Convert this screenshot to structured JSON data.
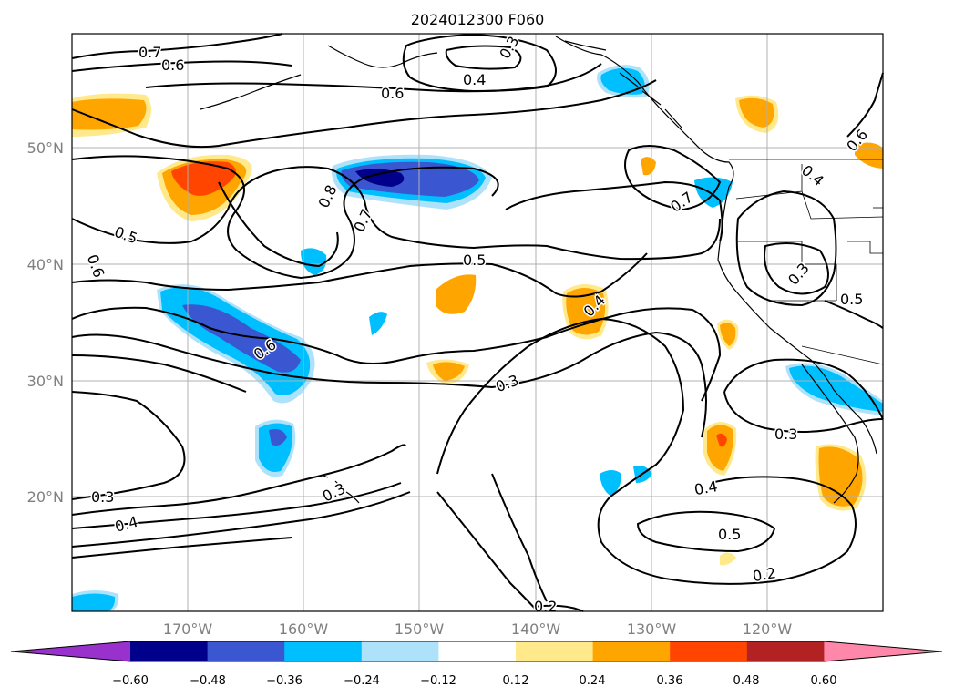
{
  "title": "2024012300 F060",
  "lat_labels": [
    "50°N",
    "40°N",
    "30°N",
    "20°N"
  ],
  "lon_labels": [
    "170°W",
    "160°W",
    "150°W",
    "140°W",
    "130°W",
    "120°W"
  ],
  "colorbar": {
    "tick_labels": [
      "−0.60",
      "−0.48",
      "−0.36",
      "−0.24",
      "−0.12",
      "0.12",
      "0.24",
      "0.36",
      "0.48",
      "0.60"
    ],
    "colors": [
      "#9932cc",
      "#00008b",
      "#3a56d0",
      "#00bfff",
      "#aee2fb",
      "#ffffff",
      "#ffe98a",
      "#ffa500",
      "#ff4500",
      "#b22222",
      "#ff88aa"
    ]
  },
  "contour_labels": [
    "0.7",
    "0.6",
    "0.6",
    "0.4",
    "0.3",
    "0.6",
    "0.4",
    "0.8",
    "0.7",
    "0.5",
    "0.6",
    "0.5",
    "0.7",
    "0.3",
    "0.5",
    "0.4",
    "0.6",
    "0.3",
    "0.3",
    "0.3",
    "0.4",
    "0.4",
    "0.3",
    "0.5",
    "0.2",
    "0.2"
  ]
}
